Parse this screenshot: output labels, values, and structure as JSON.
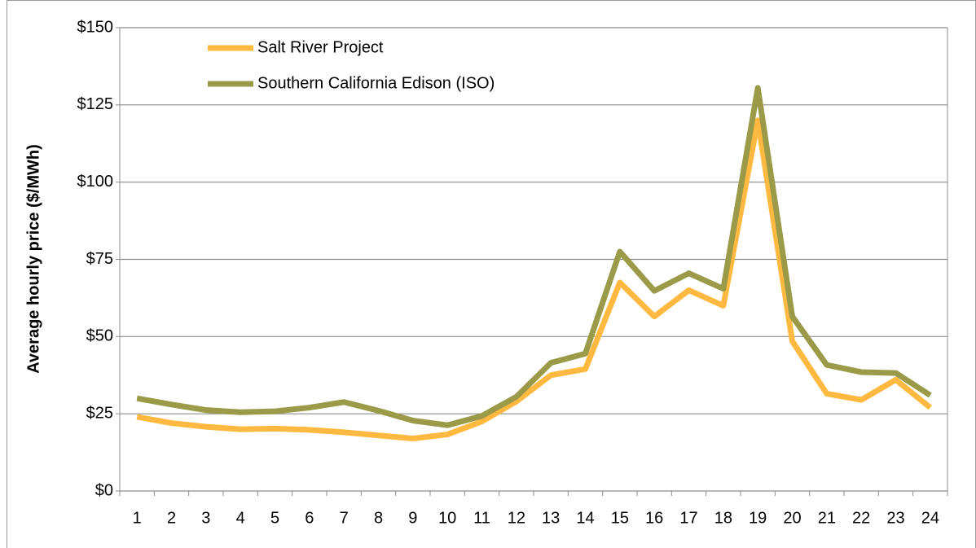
{
  "chart_data": {
    "type": "line",
    "ylabel": "Average hourly price ($/MWh)",
    "categories": [
      "1",
      "2",
      "3",
      "4",
      "5",
      "6",
      "7",
      "8",
      "9",
      "10",
      "11",
      "12",
      "13",
      "14",
      "15",
      "16",
      "17",
      "18",
      "19",
      "20",
      "21",
      "22",
      "23",
      "24"
    ],
    "series": [
      {
        "name": "Salt River Project",
        "color": "#ffb940",
        "values": [
          24,
          22,
          20.8,
          20,
          20.2,
          19.8,
          19,
          18,
          17,
          18.3,
          22.5,
          29,
          37.5,
          39.5,
          67.5,
          56.5,
          65,
          60,
          120,
          48.5,
          31.5,
          29.5,
          36,
          27
        ]
      },
      {
        "name": "Southern California Edison (ISO)",
        "color": "#9a9a48",
        "values": [
          30,
          28,
          26.2,
          25.5,
          25.8,
          27,
          28.8,
          26,
          22.8,
          21.3,
          24.3,
          30.5,
          41.5,
          44.5,
          77.5,
          64.8,
          70.5,
          65.5,
          130.5,
          56.5,
          40.8,
          38.5,
          38.2,
          31
        ]
      }
    ],
    "ylim": [
      0,
      150
    ],
    "yticks": [
      {
        "value": 0,
        "label": "$0"
      },
      {
        "value": 25,
        "label": "$25"
      },
      {
        "value": 50,
        "label": "$50"
      },
      {
        "value": 75,
        "label": "$75"
      },
      {
        "value": 100,
        "label": "$100"
      },
      {
        "value": 125,
        "label": "$125"
      },
      {
        "value": 150,
        "label": "$150"
      }
    ],
    "grid": true,
    "legend": "upper left"
  }
}
